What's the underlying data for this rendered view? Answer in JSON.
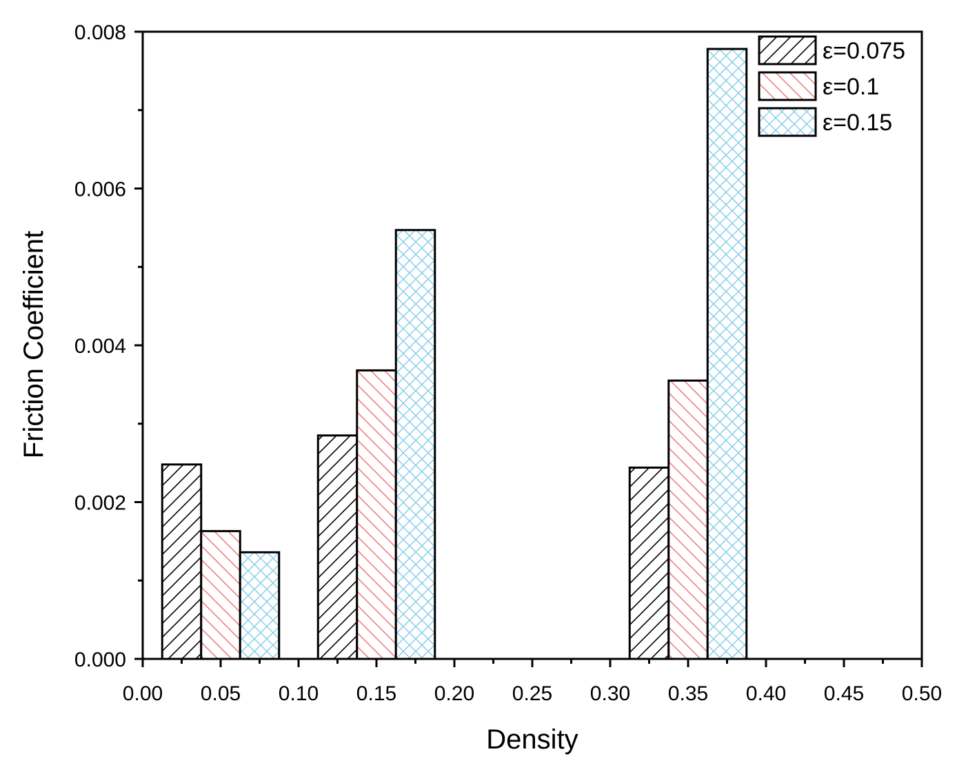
{
  "chart_data": {
    "type": "bar",
    "xlabel": "Density",
    "ylabel": "Friction Coefficient",
    "xlim": [
      0,
      0.5
    ],
    "ylim": [
      0,
      0.008
    ],
    "x_ticks": [
      "0.00",
      "0.05",
      "0.10",
      "0.15",
      "0.20",
      "0.25",
      "0.30",
      "0.35",
      "0.40",
      "0.45",
      "0.50"
    ],
    "x_tick_values": [
      0,
      0.05,
      0.1,
      0.15,
      0.2,
      0.25,
      0.3,
      0.35,
      0.4,
      0.45,
      0.5
    ],
    "y_ticks": [
      "0.000",
      "0.002",
      "0.004",
      "0.006",
      "0.008"
    ],
    "y_tick_values": [
      0,
      0.002,
      0.004,
      0.006,
      0.008
    ],
    "y_minor_step": 0.001,
    "x_minor_step": 0.025,
    "bar_width": 0.025,
    "groups_x": [
      0.05,
      0.15,
      0.35
    ],
    "series": [
      {
        "name": "ε=0.075",
        "x": [
          0.025,
          0.125,
          0.325
        ],
        "values": [
          0.00248,
          0.00285,
          0.00244
        ],
        "color": "#000000",
        "pattern": "diag-up"
      },
      {
        "name": "ε=0.1",
        "x": [
          0.05,
          0.15,
          0.35
        ],
        "values": [
          0.00163,
          0.00368,
          0.00355
        ],
        "color": "#f08080",
        "pattern": "diag-down"
      },
      {
        "name": "ε=0.15",
        "x": [
          0.075,
          0.175,
          0.375
        ],
        "values": [
          0.00136,
          0.00547,
          0.00778
        ],
        "color": "#87ceeb",
        "pattern": "crosshatch"
      }
    ],
    "legend_position": "top-right",
    "grid": false
  }
}
